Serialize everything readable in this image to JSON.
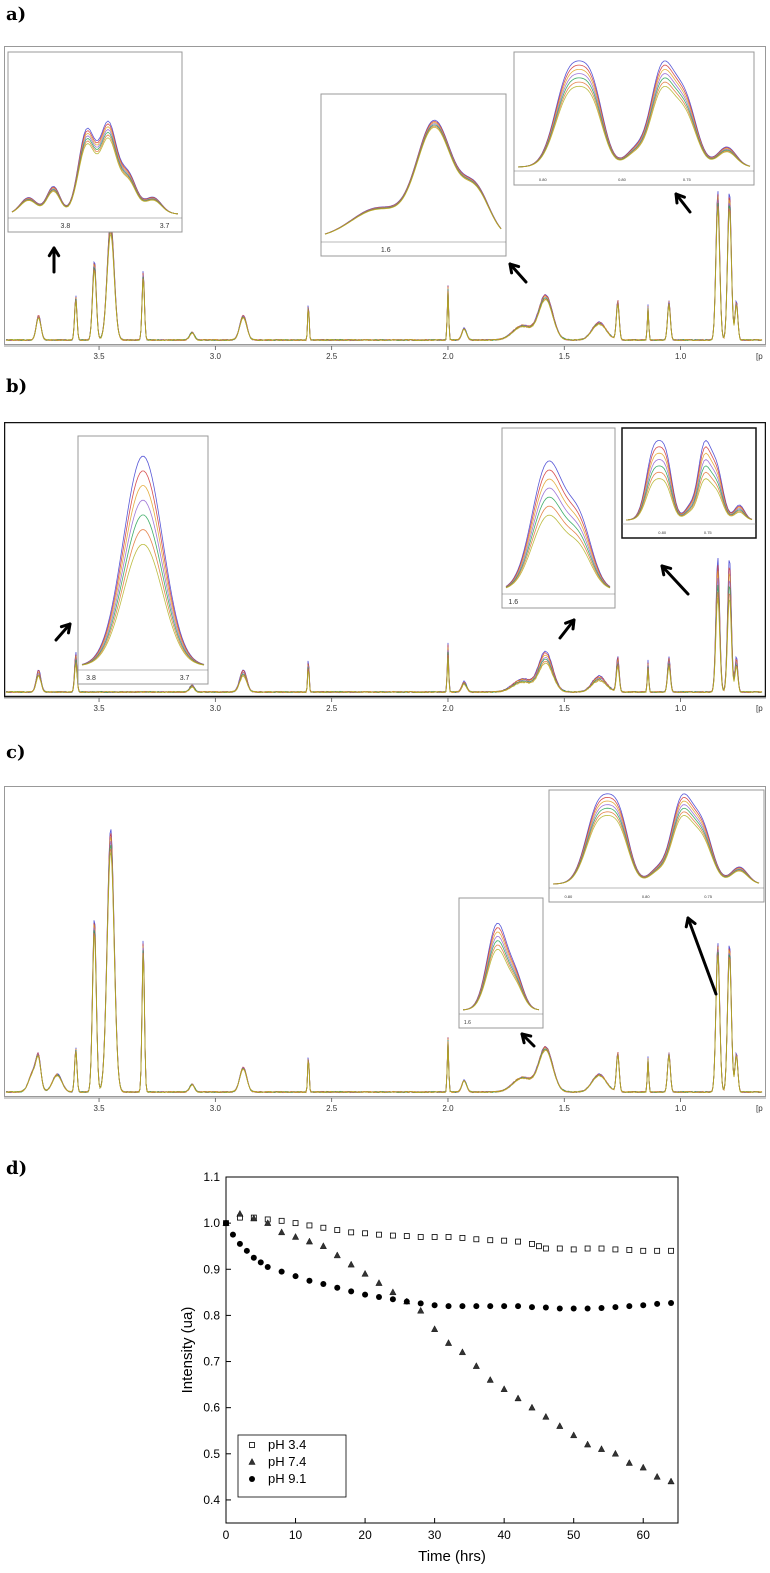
{
  "panels": {
    "a": {
      "label": "a)"
    },
    "b": {
      "label": "b)"
    },
    "c": {
      "label": "c)"
    },
    "d": {
      "label": "d)"
    }
  },
  "spectra": {
    "xaxis_ticks": [
      "3.5",
      "3.0",
      "2.5",
      "2.0",
      "1.5",
      "1.0"
    ],
    "xaxis_tick_values": [
      3.5,
      3.0,
      2.5,
      2.0,
      1.5,
      1.0
    ],
    "xaxis_unit_fragment": "[p",
    "xrange_ppm": [
      3.9,
      0.65
    ],
    "inset_ticks": {
      "left_inset": [
        "3.8",
        "3.7"
      ],
      "mid_inset": [
        "1.6"
      ],
      "right_inset": [
        "0.80",
        "0.80",
        "0.75"
      ]
    },
    "trace_colors": [
      "#3a3ad0",
      "#d03030",
      "#e0a020",
      "#8f5fd0",
      "#20a050",
      "#e07030",
      "#b0b020"
    ]
  },
  "chart_data": [
    {
      "type": "scatter",
      "panel": "d",
      "xlabel": "Time (hrs)",
      "ylabel": "Intensity (ua)",
      "xlim": [
        0,
        65
      ],
      "ylim": [
        0.35,
        1.1
      ],
      "xticks": [
        0,
        10,
        20,
        30,
        40,
        50,
        60
      ],
      "yticks": [
        0.4,
        0.5,
        0.6,
        0.7,
        0.8,
        0.9,
        1.0,
        1.1
      ],
      "xtick_labels": [
        "0",
        "10",
        "20",
        "30",
        "40",
        "50",
        "60"
      ],
      "ytick_labels": [
        "0.4",
        "0.5",
        "0.6",
        "0.7",
        "0.8",
        "0.9",
        "1.0",
        "1.1"
      ],
      "legend_position": "bottom-left",
      "series": [
        {
          "name": "pH 3.4",
          "marker": "open-square",
          "x": [
            0,
            2,
            4,
            6,
            8,
            10,
            12,
            14,
            16,
            18,
            20,
            22,
            24,
            26,
            28,
            30,
            32,
            34,
            36,
            38,
            40,
            42,
            44,
            45,
            46,
            48,
            50,
            52,
            54,
            56,
            58,
            60,
            62,
            64
          ],
          "y": [
            1.0,
            1.012,
            1.012,
            1.008,
            1.005,
            1.0,
            0.995,
            0.99,
            0.985,
            0.98,
            0.978,
            0.975,
            0.973,
            0.972,
            0.97,
            0.97,
            0.97,
            0.968,
            0.965,
            0.963,
            0.962,
            0.96,
            0.955,
            0.95,
            0.945,
            0.945,
            0.943,
            0.945,
            0.945,
            0.943,
            0.942,
            0.94,
            0.94,
            0.94
          ]
        },
        {
          "name": "pH 7.4",
          "marker": "triangle",
          "x": [
            0,
            2,
            4,
            6,
            8,
            10,
            12,
            14,
            16,
            18,
            20,
            22,
            24,
            26,
            28,
            30,
            32,
            34,
            36,
            38,
            40,
            42,
            44,
            46,
            48,
            50,
            52,
            54,
            56,
            58,
            60,
            62,
            64
          ],
          "y": [
            1.0,
            1.02,
            1.01,
            1.0,
            0.98,
            0.97,
            0.96,
            0.95,
            0.93,
            0.91,
            0.89,
            0.87,
            0.85,
            0.83,
            0.81,
            0.77,
            0.74,
            0.72,
            0.69,
            0.66,
            0.64,
            0.62,
            0.6,
            0.58,
            0.56,
            0.54,
            0.52,
            0.51,
            0.5,
            0.48,
            0.47,
            0.45,
            0.44
          ]
        },
        {
          "name": "pH 9.1",
          "marker": "filled-circle",
          "x": [
            0,
            1,
            2,
            3,
            4,
            5,
            6,
            8,
            10,
            12,
            14,
            16,
            18,
            20,
            22,
            24,
            26,
            28,
            30,
            32,
            34,
            36,
            38,
            40,
            42,
            44,
            46,
            48,
            50,
            52,
            54,
            56,
            58,
            60,
            62,
            64
          ],
          "y": [
            1.0,
            0.975,
            0.955,
            0.94,
            0.925,
            0.915,
            0.905,
            0.895,
            0.885,
            0.875,
            0.868,
            0.86,
            0.852,
            0.845,
            0.84,
            0.835,
            0.83,
            0.826,
            0.822,
            0.82,
            0.82,
            0.82,
            0.82,
            0.82,
            0.82,
            0.818,
            0.817,
            0.815,
            0.815,
            0.815,
            0.816,
            0.818,
            0.82,
            0.822,
            0.825,
            0.827
          ]
        }
      ]
    }
  ]
}
